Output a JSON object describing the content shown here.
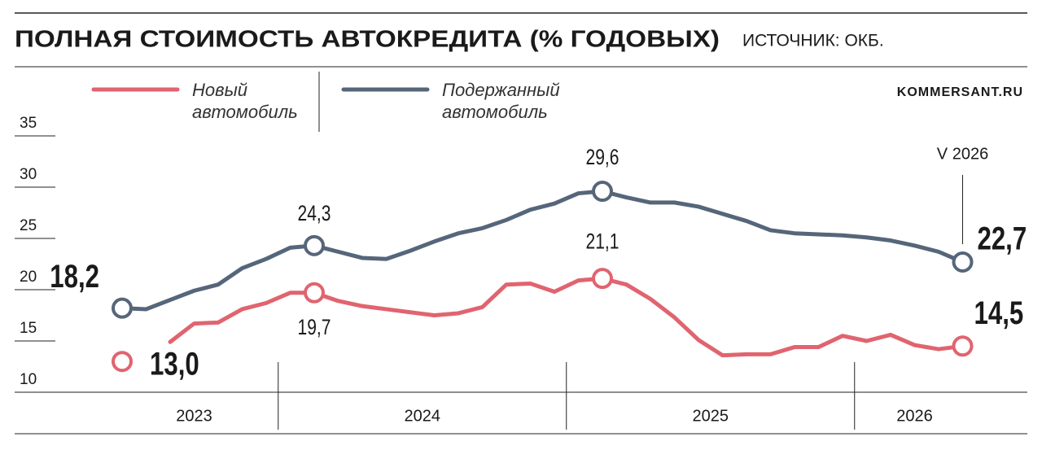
{
  "chart_data": {
    "type": "line",
    "title": "ПОЛНАЯ СТОИМОСТЬ АВТОКРЕДИТА (% ГОДОВЫХ)",
    "subtitle": "ИСТОЧНИК: ОКБ.",
    "credit": "KOMMERSANT.RU",
    "annotation": "V 2026",
    "categories": [
      "2023",
      null,
      null,
      null,
      null,
      null,
      null,
      "2024",
      null,
      null,
      null,
      null,
      null,
      null,
      null,
      null,
      null,
      null,
      null,
      "2025",
      null,
      null,
      null,
      null,
      null,
      null,
      null,
      null,
      null,
      null,
      null,
      "2026",
      null,
      null,
      null,
      null
    ],
    "ylim": [
      10,
      35
    ],
    "yticks": [
      10,
      15,
      20,
      25,
      30,
      35
    ],
    "series": [
      {
        "name": "Новый автомобиль",
        "color": "#e0646f",
        "values": [
          13.0,
          null,
          14.9,
          16.7,
          16.8,
          18.1,
          18.7,
          19.7,
          19.7,
          18.9,
          18.4,
          18.1,
          17.8,
          17.5,
          17.7,
          18.3,
          20.5,
          20.6,
          19.8,
          20.9,
          21.1,
          20.5,
          19.1,
          17.3,
          15.1,
          13.6,
          13.7,
          13.7,
          14.4,
          14.4,
          15.5,
          15.0,
          15.6,
          14.6,
          14.2,
          14.5
        ],
        "value_labels": [
          "13,0",
          null,
          null,
          null,
          null,
          null,
          null,
          null,
          "19,7",
          null,
          null,
          null,
          null,
          null,
          null,
          null,
          null,
          null,
          null,
          null,
          "21,1",
          null,
          null,
          null,
          null,
          null,
          null,
          null,
          null,
          null,
          null,
          null,
          null,
          null,
          null,
          "14,5"
        ]
      },
      {
        "name": "Подержанный автомобиль",
        "color": "#56667a",
        "values": [
          18.2,
          18.1,
          19.0,
          19.9,
          20.5,
          22.1,
          23.0,
          24.1,
          24.3,
          23.7,
          23.1,
          23.0,
          23.8,
          24.7,
          25.5,
          26.0,
          26.8,
          27.8,
          28.4,
          29.4,
          29.6,
          29.0,
          28.5,
          28.5,
          28.1,
          27.4,
          26.7,
          25.8,
          25.5,
          25.4,
          25.3,
          25.1,
          24.8,
          24.3,
          23.7,
          22.7
        ],
        "value_labels": [
          "18,2",
          null,
          null,
          null,
          null,
          null,
          null,
          null,
          "24,3",
          null,
          null,
          null,
          null,
          null,
          null,
          null,
          null,
          null,
          null,
          null,
          "29,6",
          null,
          null,
          null,
          null,
          null,
          null,
          null,
          null,
          null,
          null,
          null,
          null,
          null,
          null,
          "22,7"
        ]
      }
    ]
  }
}
